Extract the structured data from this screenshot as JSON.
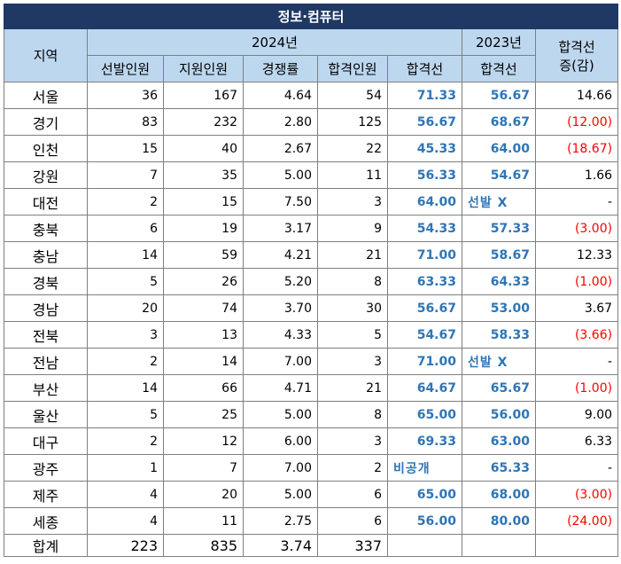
{
  "title": "정보·컴퓨터",
  "headers": {
    "region": "지역",
    "year2024": "2024년",
    "year2023": "2023년",
    "change_line1": "합격선",
    "change_line2": "증(감)",
    "selected": "선발인원",
    "applicants": "지원인원",
    "competition": "경쟁률",
    "passed": "합격인원",
    "cutoff2024": "합격선",
    "cutoff2023": "합격선"
  },
  "rows": [
    {
      "region": "서울",
      "selected": "36",
      "applicants": "167",
      "ratio": "4.64",
      "passed": "54",
      "cut2024": "71.33",
      "cut2023": "56.67",
      "change": "14.66",
      "negative": false
    },
    {
      "region": "경기",
      "selected": "83",
      "applicants": "232",
      "ratio": "2.80",
      "passed": "125",
      "cut2024": "56.67",
      "cut2023": "68.67",
      "change": "(12.00)",
      "negative": true
    },
    {
      "region": "인천",
      "selected": "15",
      "applicants": "40",
      "ratio": "2.67",
      "passed": "22",
      "cut2024": "45.33",
      "cut2023": "64.00",
      "change": "(18.67)",
      "negative": true
    },
    {
      "region": "강원",
      "selected": "7",
      "applicants": "35",
      "ratio": "5.00",
      "passed": "11",
      "cut2024": "56.33",
      "cut2023": "54.67",
      "change": "1.66",
      "negative": false
    },
    {
      "region": "대전",
      "selected": "2",
      "applicants": "15",
      "ratio": "7.50",
      "passed": "3",
      "cut2024": "64.00",
      "cut2023": "선발 X",
      "change": "-",
      "negative": false
    },
    {
      "region": "충북",
      "selected": "6",
      "applicants": "19",
      "ratio": "3.17",
      "passed": "9",
      "cut2024": "54.33",
      "cut2023": "57.33",
      "change": "(3.00)",
      "negative": true
    },
    {
      "region": "충남",
      "selected": "14",
      "applicants": "59",
      "ratio": "4.21",
      "passed": "21",
      "cut2024": "71.00",
      "cut2023": "58.67",
      "change": "12.33",
      "negative": false
    },
    {
      "region": "경북",
      "selected": "5",
      "applicants": "26",
      "ratio": "5.20",
      "passed": "8",
      "cut2024": "63.33",
      "cut2023": "64.33",
      "change": "(1.00)",
      "negative": true
    },
    {
      "region": "경남",
      "selected": "20",
      "applicants": "74",
      "ratio": "3.70",
      "passed": "30",
      "cut2024": "56.67",
      "cut2023": "53.00",
      "change": "3.67",
      "negative": false
    },
    {
      "region": "전북",
      "selected": "3",
      "applicants": "13",
      "ratio": "4.33",
      "passed": "5",
      "cut2024": "54.67",
      "cut2023": "58.33",
      "change": "(3.66)",
      "negative": true
    },
    {
      "region": "전남",
      "selected": "2",
      "applicants": "14",
      "ratio": "7.00",
      "passed": "3",
      "cut2024": "71.00",
      "cut2023": "선발 X",
      "change": "-",
      "negative": false
    },
    {
      "region": "부산",
      "selected": "14",
      "applicants": "66",
      "ratio": "4.71",
      "passed": "21",
      "cut2024": "64.67",
      "cut2023": "65.67",
      "change": "(1.00)",
      "negative": true
    },
    {
      "region": "울산",
      "selected": "5",
      "applicants": "25",
      "ratio": "5.00",
      "passed": "8",
      "cut2024": "65.00",
      "cut2023": "56.00",
      "change": "9.00",
      "negative": false
    },
    {
      "region": "대구",
      "selected": "2",
      "applicants": "12",
      "ratio": "6.00",
      "passed": "3",
      "cut2024": "69.33",
      "cut2023": "63.00",
      "change": "6.33",
      "negative": false
    },
    {
      "region": "광주",
      "selected": "1",
      "applicants": "7",
      "ratio": "7.00",
      "passed": "2",
      "cut2024": "비공개",
      "cut2023": "65.33",
      "change": "-",
      "negative": false
    },
    {
      "region": "제주",
      "selected": "4",
      "applicants": "20",
      "ratio": "5.00",
      "passed": "6",
      "cut2024": "65.00",
      "cut2023": "68.00",
      "change": "(3.00)",
      "negative": true
    },
    {
      "region": "세종",
      "selected": "4",
      "applicants": "11",
      "ratio": "2.75",
      "passed": "6",
      "cut2024": "56.00",
      "cut2023": "80.00",
      "change": "(24.00)",
      "negative": true
    }
  ],
  "total": {
    "region": "합계",
    "selected": "223",
    "applicants": "835",
    "ratio": "3.74",
    "passed": "337",
    "cut2024": "",
    "cut2023": "",
    "change": ""
  },
  "colors": {
    "title_bg": "#1f3864",
    "header_bg": "#bdd7ee",
    "cutoff_text": "#2e75b6",
    "negative_text": "#ff0000"
  }
}
